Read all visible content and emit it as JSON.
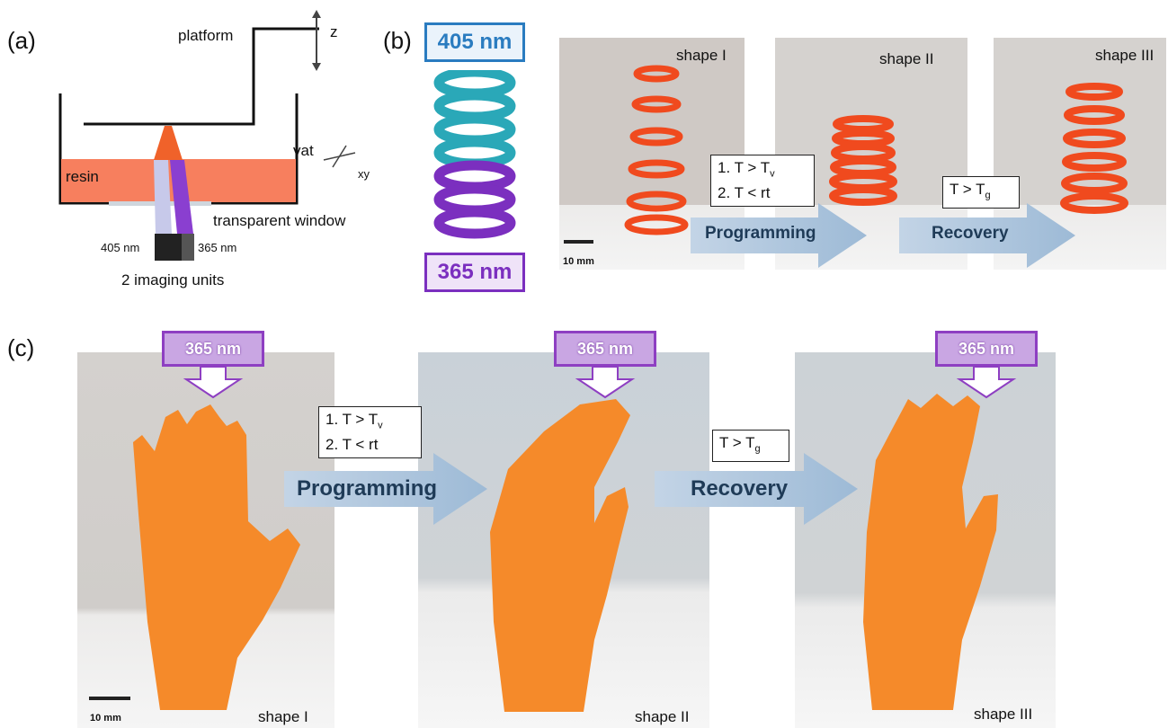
{
  "panels": {
    "a": {
      "label": "(a)",
      "platform": "platform",
      "z": "z",
      "vat": "vat",
      "xy": "xy",
      "resin": "resin",
      "window": "transparent window",
      "wl_left": "405 nm",
      "wl_right": "365 nm",
      "imaging": "2 imaging units",
      "colors": {
        "resin": "#f77f5e",
        "blue_beam": "#c7c9ea",
        "violet_beam": "#8a3fd0",
        "print": "#f0622a"
      }
    },
    "b": {
      "label": "(b)",
      "top_wavelength": "405 nm",
      "bottom_wavelength": "365 nm",
      "shape1": "shape I",
      "shape2": "shape II",
      "shape3": "shape III",
      "cond1_line1": "1. T > T",
      "cond1_sub": "v",
      "cond1_line2": "2. T < rt",
      "cond2": "T > T",
      "cond2_sub": "g",
      "programming": "Programming",
      "recovery": "Recovery",
      "scale": "10 mm",
      "colors": {
        "cyan": "#2aa8b8",
        "purple": "#7b2fbf",
        "blue_box": "#2a7cc0",
        "spring": "#f04a1e"
      }
    },
    "c": {
      "label": "(c)",
      "uv1": "365 nm",
      "uv2": "365 nm",
      "uv3": "365 nm",
      "cond1_line1": "1. T > T",
      "cond1_sub": "v",
      "cond1_line2": "2. T < rt",
      "cond2": "T > T",
      "cond2_sub": "g",
      "programming": "Programming",
      "recovery": "Recovery",
      "shape1": "shape I",
      "shape2": "shape II",
      "shape3": "shape III",
      "scale": "10 mm",
      "colors": {
        "hand": "#f58a2a",
        "uv_fill": "#c9a6e3",
        "uv_border": "#8e3fc2",
        "arrow": "#a9c3de"
      }
    }
  }
}
